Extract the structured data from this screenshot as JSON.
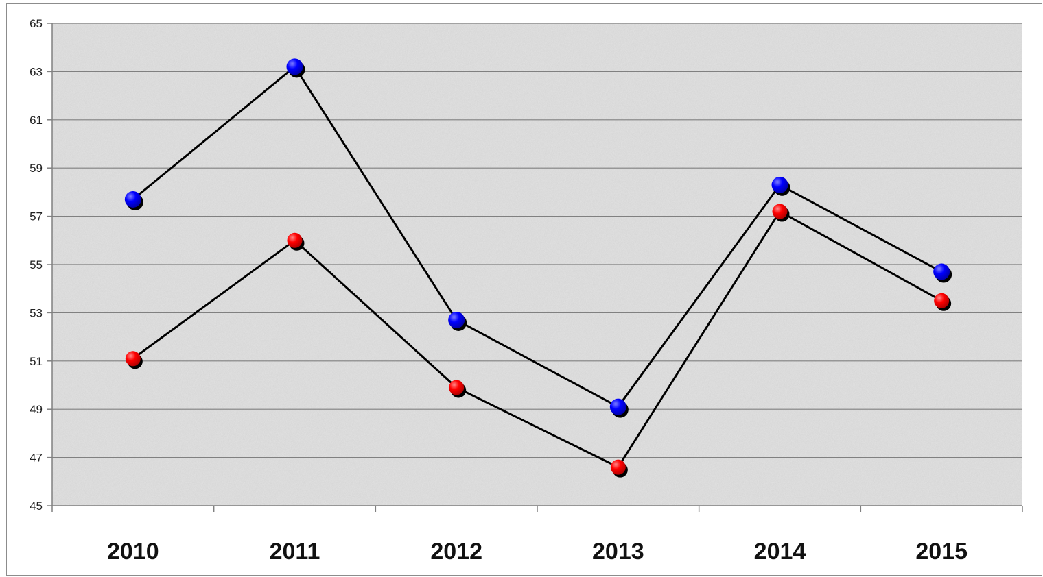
{
  "chart_data": {
    "type": "line",
    "title": "",
    "xlabel": "",
    "ylabel": "",
    "categories": [
      "2010",
      "2011",
      "2012",
      "2013",
      "2014",
      "2015"
    ],
    "ylim": [
      45,
      65
    ],
    "yticks": [
      45,
      47,
      49,
      51,
      53,
      55,
      57,
      59,
      61,
      63,
      65
    ],
    "grid": true,
    "legend": "none",
    "series": [
      {
        "color": "#0000ff",
        "values": [
          57.7,
          63.2,
          52.7,
          49.1,
          58.3,
          54.7
        ]
      },
      {
        "color": "#ff0000",
        "values": [
          51.1,
          56.0,
          49.9,
          46.6,
          57.2,
          53.5
        ]
      }
    ],
    "line_color": "#000000",
    "plot_background": "#e3e3e3",
    "gridline_color": "#808080"
  }
}
